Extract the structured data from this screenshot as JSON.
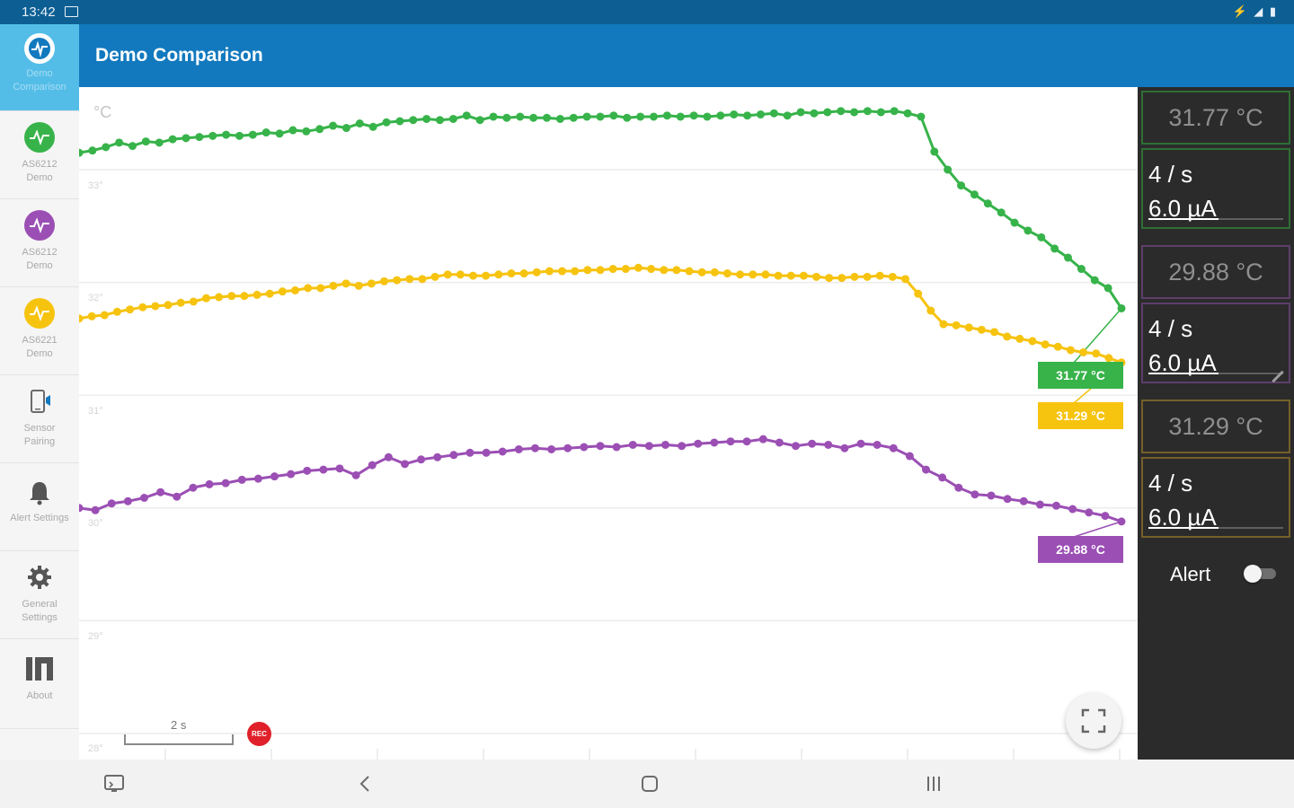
{
  "status_bar": {
    "time": "13:42"
  },
  "header": {
    "title": "Demo Comparison"
  },
  "sidebar": {
    "items": [
      {
        "label": "Demo\nComparison",
        "icon": "logo-icon",
        "color": "#1279be"
      },
      {
        "label": "AS6212\nDemo",
        "icon": "pulse-icon",
        "color": "#37b34a"
      },
      {
        "label": "AS6212\nDemo",
        "icon": "pulse-icon",
        "color": "#9b4fb4"
      },
      {
        "label": "AS6221\nDemo",
        "icon": "pulse-icon",
        "color": "#f6c30f"
      },
      {
        "label": "Sensor\nPairing",
        "icon": "phone-icon"
      },
      {
        "label": "Alert Settings",
        "icon": "bell-icon"
      },
      {
        "label": "General\nSettings",
        "icon": "gear-icon"
      },
      {
        "label": "About",
        "icon": "ams-logo-icon"
      }
    ]
  },
  "chart": {
    "unit": "°C",
    "y_ticks": [
      "33°",
      "32°",
      "31°",
      "30°",
      "29°",
      "28°"
    ],
    "scale_label": "2 s",
    "rec_label": "REC",
    "tags": [
      {
        "text": "31.77 °C",
        "color": "#37b34a"
      },
      {
        "text": "31.29 °C",
        "color": "#f6c30f"
      },
      {
        "text": "29.88 °C",
        "color": "#9b4fb4"
      }
    ]
  },
  "chart_data": {
    "type": "line",
    "ylabel": "°C",
    "y_ticks": [
      33,
      32,
      31,
      30,
      29,
      28
    ],
    "ylim": [
      27.9,
      33.5
    ],
    "series": [
      {
        "color": "#37b34a",
        "last_value": 31.77,
        "values": [
          33.15,
          33.17,
          33.2,
          33.24,
          33.21,
          33.25,
          33.24,
          33.27,
          33.28,
          33.29,
          33.3,
          33.31,
          33.3,
          33.31,
          33.33,
          33.32,
          33.35,
          33.34,
          33.36,
          33.39,
          33.37,
          33.41,
          33.38,
          33.42,
          33.43,
          33.44,
          33.45,
          33.44,
          33.45,
          33.48,
          33.44,
          33.47,
          33.46,
          33.47,
          33.46,
          33.46,
          33.45,
          33.46,
          33.47,
          33.47,
          33.48,
          33.46,
          33.47,
          33.47,
          33.48,
          33.47,
          33.48,
          33.47,
          33.48,
          33.49,
          33.48,
          33.49,
          33.5,
          33.48,
          33.51,
          33.5,
          33.51,
          33.52,
          33.51,
          33.52,
          33.51,
          33.52,
          33.5,
          33.47,
          33.16,
          33.0,
          32.86,
          32.78,
          32.7,
          32.62,
          32.53,
          32.46,
          32.4,
          32.3,
          32.22,
          32.12,
          32.02,
          31.95,
          31.77
        ]
      },
      {
        "color": "#f6c30f",
        "last_value": 31.29,
        "values": [
          31.68,
          31.7,
          31.71,
          31.74,
          31.76,
          31.78,
          31.79,
          31.8,
          31.82,
          31.83,
          31.86,
          31.87,
          31.88,
          31.88,
          31.89,
          31.9,
          31.92,
          31.93,
          31.95,
          31.95,
          31.97,
          31.99,
          31.97,
          31.99,
          32.01,
          32.02,
          32.03,
          32.03,
          32.05,
          32.07,
          32.07,
          32.06,
          32.06,
          32.07,
          32.08,
          32.08,
          32.09,
          32.1,
          32.1,
          32.1,
          32.11,
          32.11,
          32.12,
          32.12,
          32.13,
          32.12,
          32.11,
          32.11,
          32.1,
          32.09,
          32.09,
          32.08,
          32.07,
          32.07,
          32.07,
          32.06,
          32.06,
          32.06,
          32.05,
          32.04,
          32.04,
          32.05,
          32.05,
          32.06,
          32.05,
          32.03,
          31.9,
          31.75,
          31.63,
          31.62,
          31.6,
          31.58,
          31.56,
          31.52,
          31.5,
          31.48,
          31.45,
          31.43,
          31.4,
          31.38,
          31.37,
          31.33,
          31.29
        ]
      },
      {
        "color": "#9b4fb4",
        "last_value": 29.88,
        "values": [
          30.0,
          29.98,
          30.04,
          30.06,
          30.09,
          30.14,
          30.1,
          30.18,
          30.21,
          30.22,
          30.25,
          30.26,
          30.28,
          30.3,
          30.33,
          30.34,
          30.35,
          30.29,
          30.38,
          30.45,
          30.39,
          30.43,
          30.45,
          30.47,
          30.49,
          30.49,
          30.5,
          30.52,
          30.53,
          30.52,
          30.53,
          30.54,
          30.55,
          30.54,
          30.56,
          30.55,
          30.56,
          30.55,
          30.57,
          30.58,
          30.59,
          30.59,
          30.61,
          30.58,
          30.55,
          30.57,
          30.56,
          30.53,
          30.57,
          30.56,
          30.53,
          30.46,
          30.34,
          30.27,
          30.18,
          30.12,
          30.11,
          30.08,
          30.06,
          30.03,
          30.02,
          29.99,
          29.96,
          29.93,
          29.88
        ]
      }
    ]
  },
  "panel": {
    "sensors": [
      {
        "temp": "31.77 °C",
        "rate": "4 / s",
        "current": "6.0 µA",
        "color": "#37b34a"
      },
      {
        "temp": "29.88 °C",
        "rate": "4 / s",
        "current": "6.0 µA",
        "color": "#9b4fb4"
      },
      {
        "temp": "31.29 °C",
        "rate": "4 / s",
        "current": "6.0 µA",
        "color": "#f6c30f"
      }
    ],
    "alert_label": "Alert",
    "alert_enabled": false
  }
}
